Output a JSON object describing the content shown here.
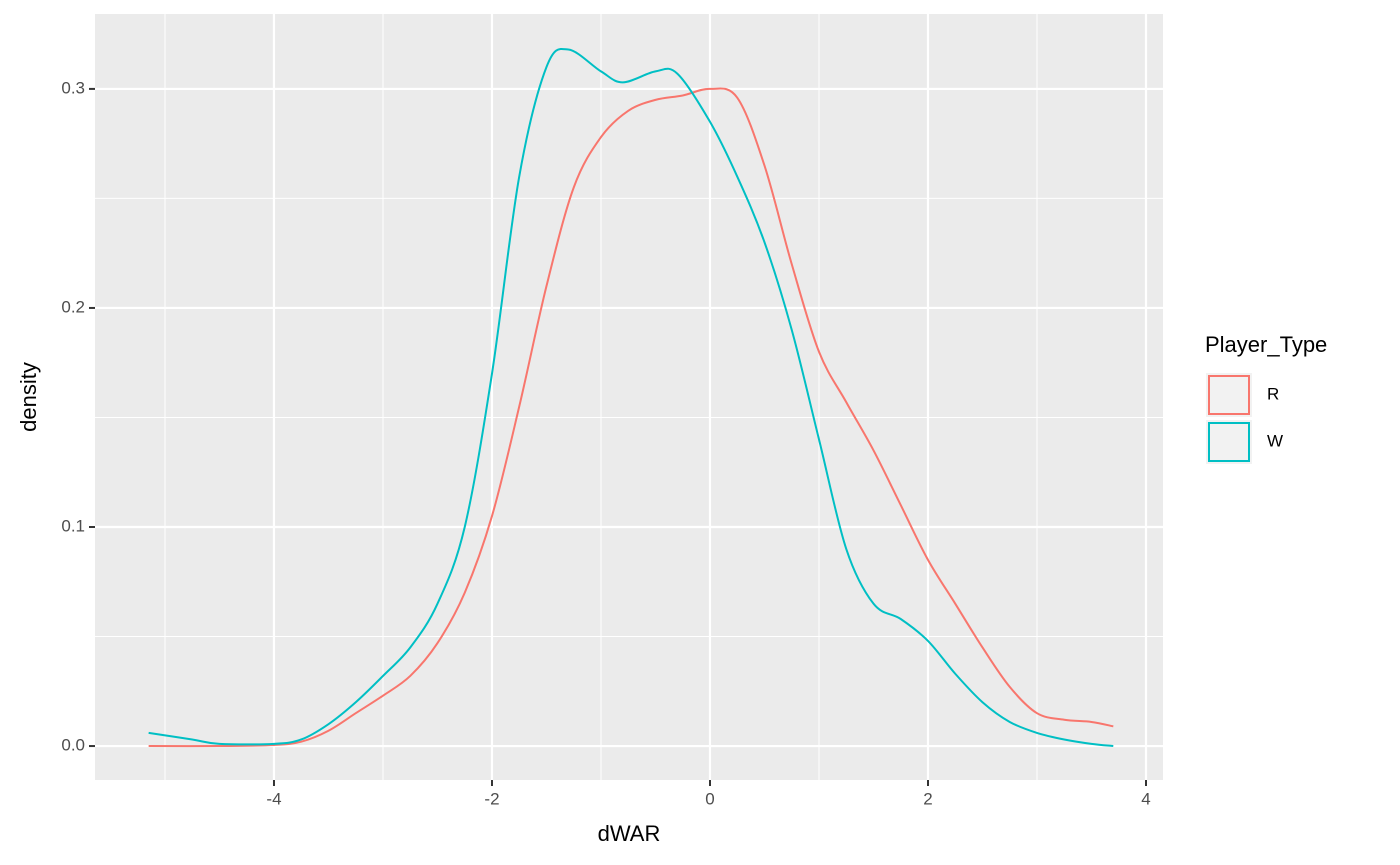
{
  "chart_data": {
    "type": "density",
    "x_label": "dWAR",
    "y_label": "density",
    "legend_title": "Player_Type",
    "legend_position": "right",
    "xlim": [
      -5.642,
      4.156
    ],
    "ylim": [
      -0.0155,
      0.3342
    ],
    "xticks": [
      -4,
      -2,
      0,
      2,
      4
    ],
    "yticks": [
      {
        "value": 0,
        "label": "0.0"
      },
      0.1,
      0.2,
      0.3
    ],
    "x_minor_breaks": [
      -5,
      -3,
      -1,
      1,
      3
    ],
    "y_minor_breaks": [
      0.05,
      0.15,
      0.25
    ],
    "grid": true,
    "series": [
      {
        "name": "R",
        "color": "#F8766D",
        "x": [
          -5.15,
          -4.5,
          -4,
          -3.75,
          -3.5,
          -3.25,
          -3,
          -2.75,
          -2.5,
          -2.25,
          -2,
          -1.75,
          -1.5,
          -1.25,
          -1,
          -0.75,
          -0.5,
          -0.25,
          0,
          0.25,
          0.5,
          0.75,
          1,
          1.25,
          1.5,
          1.75,
          2,
          2.25,
          2.5,
          2.75,
          3,
          3.25,
          3.5,
          3.7
        ],
        "values": [
          0,
          0,
          0.0005,
          0.002,
          0.007,
          0.015,
          0.023,
          0.032,
          0.047,
          0.07,
          0.105,
          0.155,
          0.21,
          0.255,
          0.278,
          0.29,
          0.295,
          0.297,
          0.3,
          0.296,
          0.265,
          0.22,
          0.18,
          0.157,
          0.135,
          0.11,
          0.085,
          0.065,
          0.045,
          0.027,
          0.015,
          0.012,
          0.011,
          0.009
        ]
      },
      {
        "name": "W",
        "color": "#00BFC4",
        "x": [
          -5.15,
          -4.75,
          -4.5,
          -4,
          -3.75,
          -3.5,
          -3.25,
          -3,
          -2.75,
          -2.5,
          -2.25,
          -2,
          -1.75,
          -1.5,
          -1.3,
          -1,
          -0.8,
          -0.5,
          -0.3,
          0,
          0.25,
          0.5,
          0.75,
          1,
          1.25,
          1.5,
          1.75,
          2,
          2.25,
          2.5,
          2.75,
          3,
          3.25,
          3.5,
          3.7
        ],
        "values": [
          0.006,
          0.003,
          0.001,
          0.001,
          0.003,
          0.01,
          0.02,
          0.032,
          0.045,
          0.065,
          0.1,
          0.17,
          0.26,
          0.31,
          0.318,
          0.308,
          0.303,
          0.308,
          0.307,
          0.285,
          0.26,
          0.23,
          0.19,
          0.14,
          0.09,
          0.065,
          0.058,
          0.048,
          0.033,
          0.02,
          0.011,
          0.006,
          0.003,
          0.001,
          0
        ]
      }
    ]
  }
}
